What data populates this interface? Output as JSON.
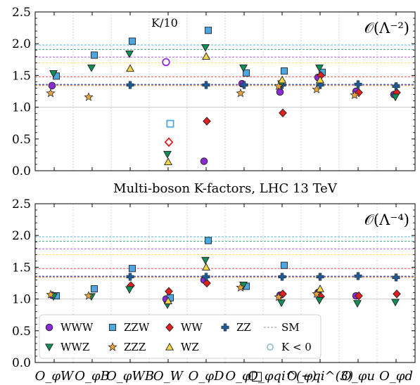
{
  "title": "Multi-boson K-factors, LHC 13 TeV",
  "chart_data": [
    {
      "type": "scatter",
      "panel_label": "𝒪(Λ⁻²)",
      "annotation": "K/10",
      "ylim": [
        0,
        2.5
      ],
      "yticks": [
        "0.0",
        "0.5",
        "1.0",
        "1.5",
        "2.0",
        "2.5"
      ],
      "categories": [
        "O_φW",
        "O_φB",
        "O_φWB",
        "O_W",
        "O_φD",
        "O_φ□",
        "O_φqi^(−)",
        "O_φqi^(3)",
        "O_φu",
        "O_φd"
      ],
      "sm_lines": {
        "WWW": 1.35,
        "ZZW": 1.98,
        "WW": 1.48,
        "ZZ": 1.36,
        "WWZ": 1.91,
        "ZZZ": 1.34,
        "WZ": 1.7,
        "extra": 1.79
      },
      "series": [
        {
          "name": "WWW",
          "values": [
            1.34,
            null,
            null,
            1.71,
            0.15,
            1.37,
            1.24,
            1.47,
            1.25,
            1.2
          ],
          "negative": [
            null,
            null,
            null,
            true,
            null,
            null,
            null,
            null,
            null,
            null
          ]
        },
        {
          "name": "ZZW",
          "values": [
            1.49,
            1.82,
            2.04,
            0.74,
            2.21,
            1.54,
            1.57,
            1.55,
            null,
            null
          ],
          "negative": [
            false,
            false,
            false,
            true,
            false,
            false,
            false,
            false,
            null,
            null
          ]
        },
        {
          "name": "WW",
          "values": [
            null,
            null,
            null,
            0.45,
            0.78,
            null,
            0.91,
            1.5,
            1.23,
            1.23
          ],
          "negative": [
            null,
            null,
            null,
            true,
            false,
            null,
            false,
            false,
            false,
            false
          ]
        },
        {
          "name": "ZZ",
          "values": [
            null,
            null,
            1.35,
            null,
            1.35,
            1.35,
            1.35,
            1.35,
            1.36,
            1.33
          ],
          "negative": []
        },
        {
          "name": "WWZ",
          "values": [
            1.53,
            1.62,
            1.84,
            0.26,
            1.94,
            1.62,
            1.37,
            1.62,
            null,
            1.16
          ],
          "negative": []
        },
        {
          "name": "ZZZ",
          "values": [
            1.22,
            1.16,
            null,
            null,
            null,
            1.22,
            1.33,
            1.28,
            1.19,
            null
          ],
          "negative": []
        },
        {
          "name": "WZ",
          "values": [
            null,
            null,
            1.61,
            0.14,
            1.8,
            null,
            1.43,
            1.43,
            null,
            null
          ],
          "negative": []
        }
      ]
    },
    {
      "type": "scatter",
      "panel_label": "𝒪(Λ⁻⁴)",
      "ylim": [
        0,
        2.5
      ],
      "yticks": [
        "0.0",
        "0.5",
        "1.0",
        "1.5",
        "2.0",
        "2.5"
      ],
      "categories": [
        "O_φW",
        "O_φB",
        "O_φWB",
        "O_W",
        "O_φD",
        "O_φ□",
        "O_φqi^(−)",
        "O_φqi^(3)",
        "O_φu",
        "O_φd"
      ],
      "sm_lines": {
        "WWW": 1.35,
        "ZZW": 1.98,
        "WW": 1.48,
        "ZZ": 1.36,
        "WWZ": 1.91,
        "ZZZ": 1.34,
        "WZ": 1.7,
        "extra": 1.79
      },
      "series": [
        {
          "name": "WWW",
          "values": [
            1.06,
            null,
            null,
            1.0,
            1.3,
            null,
            1.06,
            1.1,
            1.05,
            null
          ]
        },
        {
          "name": "ZZW",
          "values": [
            1.05,
            1.16,
            1.48,
            1.02,
            1.92,
            1.2,
            1.53,
            null,
            null,
            null
          ]
        },
        {
          "name": "WW",
          "values": [
            null,
            null,
            1.21,
            1.12,
            1.25,
            null,
            1.08,
            1.04,
            1.05,
            1.08
          ]
        },
        {
          "name": "ZZ",
          "values": [
            null,
            null,
            1.35,
            null,
            1.35,
            null,
            1.35,
            1.35,
            1.36,
            1.34
          ]
        },
        {
          "name": "WWZ",
          "values": [
            1.04,
            1.04,
            1.15,
            0.91,
            1.61,
            1.22,
            0.94,
            0.98,
            0.93,
            0.95
          ]
        },
        {
          "name": "ZZZ",
          "values": [
            1.07,
            1.05,
            null,
            null,
            null,
            1.18,
            1.03,
            1.08,
            null,
            null
          ]
        },
        {
          "name": "WZ",
          "values": [
            null,
            null,
            null,
            0.97,
            1.5,
            null,
            null,
            1.16,
            null,
            null
          ]
        }
      ]
    }
  ],
  "legend": {
    "items": [
      {
        "label": "WWW",
        "marker": "circle",
        "color": "#8a2bd6"
      },
      {
        "label": "ZZW",
        "marker": "square",
        "color": "#4ea7e0"
      },
      {
        "label": "WW",
        "marker": "diamond",
        "color": "#e02020"
      },
      {
        "label": "ZZ",
        "marker": "plus",
        "color": "#1f5b94"
      },
      {
        "label": "SM",
        "marker": "dash",
        "color": "#999999"
      },
      {
        "label": "WWZ",
        "marker": "triangle-down",
        "color": "#0f8f57"
      },
      {
        "label": "ZZZ",
        "marker": "star",
        "color": "#e8a43a"
      },
      {
        "label": "WZ",
        "marker": "triangle-up",
        "color": "#f1d54a"
      },
      {
        "label": "K < 0",
        "marker": "open-circle",
        "color": "#7fb5c9"
      }
    ]
  },
  "colors": {
    "WWW": "#8a2bd6",
    "ZZW": "#4ea7e0",
    "WW": "#e02020",
    "ZZ": "#1f5b94",
    "WWZ": "#0f8f57",
    "ZZZ": "#e8a43a",
    "WZ": "#f1d54a",
    "extra": "#9b30d9",
    "grid": "#cfcfcf"
  }
}
